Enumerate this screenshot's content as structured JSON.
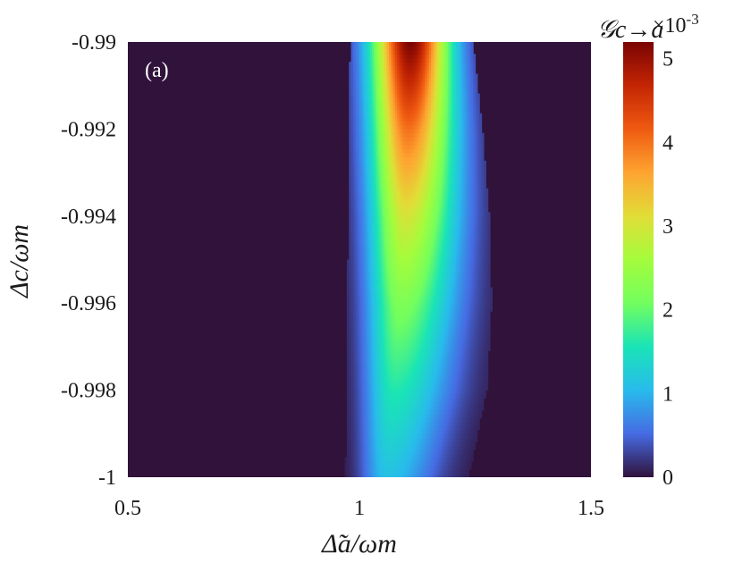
{
  "chart_data": {
    "type": "heatmap",
    "title": "",
    "panel_label": "(a)",
    "xlabel": "Δ̃a/ωm",
    "ylabel": "Δc/ωm",
    "xlim": [
      0.5,
      1.5
    ],
    "ylim": [
      -1,
      -0.99
    ],
    "x_ticks": [
      0.5,
      1,
      1.5
    ],
    "x_tick_labels": [
      "0.5",
      "1",
      "1.5"
    ],
    "y_ticks": [
      -0.99,
      -0.992,
      -0.994,
      -0.996,
      -0.998,
      -1
    ],
    "y_tick_labels": [
      "-0.99",
      "-0.992",
      "-0.994",
      "-0.996",
      "-0.998",
      "-1"
    ],
    "colorbar": {
      "label": "𝒢c→a",
      "multiplier_label": "×10",
      "multiplier_exponent": "-3",
      "range": [
        0,
        5.2
      ],
      "ticks": [
        0,
        1,
        2,
        3,
        4,
        5
      ],
      "tick_labels": [
        "0",
        "1",
        "2",
        "3",
        "4",
        "5"
      ],
      "colormap": "turbo"
    },
    "grid": false,
    "peak": {
      "x": 1.11,
      "y": -0.99,
      "value": 5.2
    },
    "field_profile": [
      {
        "y": -0.99,
        "center": 1.11,
        "amplitude": 5.2,
        "inner_edge": 0.98,
        "outer_edge": 1.245
      },
      {
        "y": -0.992,
        "center": 1.105,
        "amplitude": 4.0,
        "inner_edge": 0.978,
        "outer_edge": 1.265
      },
      {
        "y": -0.994,
        "center": 1.1,
        "amplitude": 3.0,
        "inner_edge": 0.976,
        "outer_edge": 1.28
      },
      {
        "y": -0.996,
        "center": 1.09,
        "amplitude": 2.2,
        "inner_edge": 0.974,
        "outer_edge": 1.285
      },
      {
        "y": -0.998,
        "center": 1.075,
        "amplitude": 1.6,
        "inner_edge": 0.972,
        "outer_edge": 1.275
      },
      {
        "y": -1,
        "center": 1.06,
        "amplitude": 1.1,
        "inner_edge": 0.97,
        "outer_edge": 1.235
      }
    ],
    "colors": {
      "background_low": "#30123b",
      "high": "#7a0403"
    }
  }
}
